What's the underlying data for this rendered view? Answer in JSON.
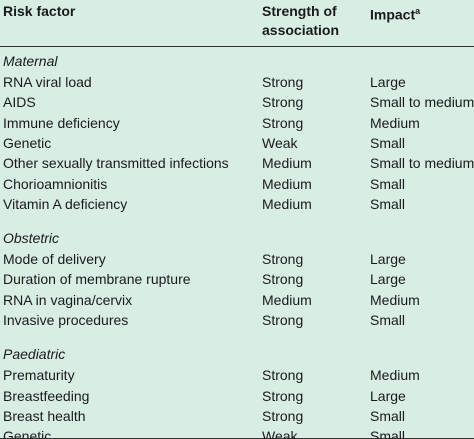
{
  "header": {
    "risk_factor": "Risk factor",
    "strength": "Strength of association",
    "impact": "Impact",
    "impact_note": "a"
  },
  "sections": [
    {
      "title": "Maternal",
      "rows": [
        [
          "RNA viral load",
          "Strong",
          "Large"
        ],
        [
          "AIDS",
          "Strong",
          "Small to medium"
        ],
        [
          "Immune deficiency",
          "Strong",
          "Medium"
        ],
        [
          "Genetic",
          "Weak",
          "Small"
        ],
        [
          "Other sexually transmitted infections",
          "Medium",
          "Small to medium"
        ],
        [
          "Chorioamnionitis",
          "Medium",
          "Small"
        ],
        [
          "Vitamin A deficiency",
          "Medium",
          "Small"
        ]
      ]
    },
    {
      "title": "Obstetric",
      "rows": [
        [
          "Mode of delivery",
          "Strong",
          "Large"
        ],
        [
          "Duration of membrane rupture",
          "Strong",
          "Large"
        ],
        [
          "RNA in vagina/cervix",
          "Medium",
          "Medium"
        ],
        [
          "Invasive procedures",
          "Strong",
          "Small"
        ]
      ]
    },
    {
      "title": "Paediatric",
      "rows": [
        [
          "Prematurity",
          "Strong",
          "Medium"
        ],
        [
          "Breastfeeding",
          "Strong",
          "Large"
        ],
        [
          "Breast health",
          "Strong",
          "Small"
        ],
        [
          "Genetic",
          "Weak",
          "Small"
        ]
      ]
    }
  ]
}
